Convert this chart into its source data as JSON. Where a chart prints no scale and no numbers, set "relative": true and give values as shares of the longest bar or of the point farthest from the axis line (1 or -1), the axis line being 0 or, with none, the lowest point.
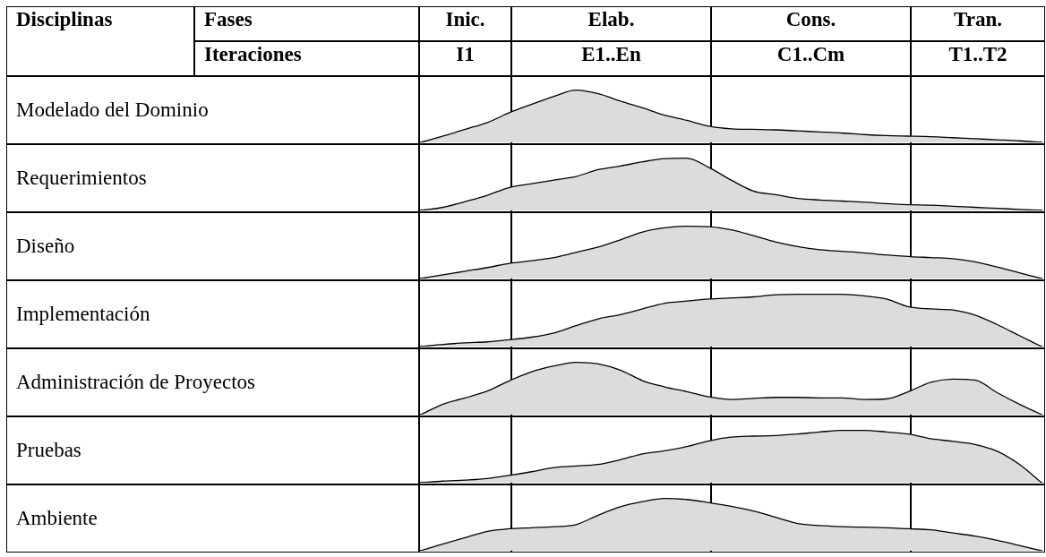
{
  "chart_data": [
    {
      "type": "area",
      "ylabel": "Modelado del Dominio",
      "relative": true,
      "color": "#dcdcdc",
      "categories": [
        null,
        null,
        null,
        null,
        null,
        null,
        null,
        null,
        null,
        null,
        null,
        null,
        null,
        null,
        null,
        null,
        null,
        null,
        null,
        null,
        null,
        null,
        null,
        null,
        null,
        null,
        null,
        null,
        null
      ],
      "values": [
        0,
        0.12,
        0.25,
        0.38,
        0.57,
        0.73,
        0.88,
        1,
        0.93,
        0.79,
        0.66,
        0.52,
        0.42,
        0.31,
        0.26,
        0.25,
        0.24,
        0.22,
        0.2,
        0.18,
        0.15,
        0.13,
        0.12,
        0.11,
        0.09,
        0.07,
        0.05,
        0.03,
        0
      ]
    },
    {
      "type": "area",
      "ylabel": "Requerimientos",
      "relative": true,
      "color": "#dcdcdc",
      "categories": [
        null,
        null,
        null,
        null,
        null,
        null,
        null,
        null,
        null,
        null,
        null,
        null,
        null,
        null,
        null,
        null,
        null,
        null,
        null,
        null,
        null,
        null,
        null,
        null,
        null,
        null,
        null,
        null,
        null
      ],
      "values": [
        0,
        0.06,
        0.17,
        0.29,
        0.44,
        0.51,
        0.58,
        0.65,
        0.78,
        0.85,
        0.93,
        0.99,
        1,
        0.82,
        0.58,
        0.37,
        0.3,
        0.23,
        0.2,
        0.18,
        0.16,
        0.13,
        0.11,
        0.1,
        0.08,
        0.06,
        0.04,
        0.02,
        0
      ]
    },
    {
      "type": "area",
      "ylabel": "Diseño",
      "relative": true,
      "color": "#dcdcdc",
      "categories": [
        null,
        null,
        null,
        null,
        null,
        null,
        null,
        null,
        null,
        null,
        null,
        null,
        null,
        null,
        null,
        null,
        null,
        null,
        null,
        null,
        null,
        null,
        null,
        null,
        null,
        null,
        null,
        null,
        null
      ],
      "values": [
        0,
        0.07,
        0.14,
        0.21,
        0.29,
        0.34,
        0.4,
        0.5,
        0.6,
        0.74,
        0.89,
        0.97,
        1,
        0.99,
        0.93,
        0.82,
        0.7,
        0.61,
        0.55,
        0.52,
        0.49,
        0.45,
        0.42,
        0.4,
        0.38,
        0.32,
        0.22,
        0.11,
        0
      ]
    },
    {
      "type": "area",
      "ylabel": "Implementación",
      "relative": true,
      "color": "#dcdcdc",
      "categories": [
        null,
        null,
        null,
        null,
        null,
        null,
        null,
        null,
        null,
        null,
        null,
        null,
        null,
        null,
        null,
        null,
        null,
        null,
        null,
        null,
        null,
        null,
        null,
        null,
        null,
        null,
        null,
        null,
        null
      ],
      "values": [
        0,
        0.04,
        0.07,
        0.09,
        0.13,
        0.18,
        0.26,
        0.4,
        0.53,
        0.61,
        0.72,
        0.83,
        0.87,
        0.91,
        0.93,
        0.95,
        0.99,
        1,
        1,
        1,
        0.97,
        0.91,
        0.76,
        0.72,
        0.7,
        0.6,
        0.42,
        0.21,
        0
      ]
    },
    {
      "type": "area",
      "ylabel": "Administración de Proyectos",
      "relative": true,
      "color": "#dcdcdc",
      "categories": [
        null,
        null,
        null,
        null,
        null,
        null,
        null,
        null,
        null,
        null,
        null,
        null,
        null,
        null,
        null,
        null,
        null,
        null,
        null,
        null,
        null,
        null,
        null,
        null,
        null,
        null,
        null,
        null,
        null
      ],
      "values": [
        0,
        0.2,
        0.32,
        0.45,
        0.65,
        0.82,
        0.93,
        1,
        0.97,
        0.85,
        0.65,
        0.53,
        0.44,
        0.34,
        0.29,
        0.31,
        0.33,
        0.33,
        0.32,
        0.32,
        0.29,
        0.3,
        0.44,
        0.62,
        0.68,
        0.66,
        0.42,
        0.2,
        0
      ]
    },
    {
      "type": "area",
      "ylabel": "Pruebas",
      "relative": true,
      "color": "#dcdcdc",
      "categories": [
        null,
        null,
        null,
        null,
        null,
        null,
        null,
        null,
        null,
        null,
        null,
        null,
        null,
        null,
        null,
        null,
        null,
        null,
        null,
        null,
        null,
        null,
        null,
        null,
        null,
        null,
        null,
        null,
        null
      ],
      "values": [
        0,
        0.03,
        0.05,
        0.08,
        0.14,
        0.21,
        0.29,
        0.32,
        0.35,
        0.44,
        0.55,
        0.61,
        0.69,
        0.8,
        0.87,
        0.89,
        0.9,
        0.93,
        0.97,
        1,
        1,
        0.97,
        0.93,
        0.84,
        0.79,
        0.73,
        0.6,
        0.35,
        0
      ]
    },
    {
      "type": "area",
      "ylabel": "Ambiente",
      "relative": true,
      "color": "#dcdcdc",
      "categories": [
        null,
        null,
        null,
        null,
        null,
        null,
        null,
        null,
        null,
        null,
        null,
        null,
        null,
        null,
        null,
        null,
        null,
        null,
        null,
        null,
        null,
        null,
        null,
        null,
        null,
        null,
        null,
        null,
        null
      ],
      "values": [
        0,
        0.13,
        0.25,
        0.37,
        0.42,
        0.44,
        0.46,
        0.5,
        0.68,
        0.84,
        0.94,
        1,
        0.98,
        0.92,
        0.85,
        0.76,
        0.64,
        0.52,
        0.48,
        0.46,
        0.45,
        0.44,
        0.42,
        0.4,
        0.34,
        0.28,
        0.2,
        0.1,
        0
      ]
    },
    {
      "type": "other",
      "annotations": [
        "Disciplinas",
        "Fases",
        "Inic.",
        "Elab.",
        "Cons.",
        "Tran.",
        "Iteraciones",
        "I1",
        "E1..En",
        "C1..Cm",
        "T1..T2"
      ]
    }
  ]
}
